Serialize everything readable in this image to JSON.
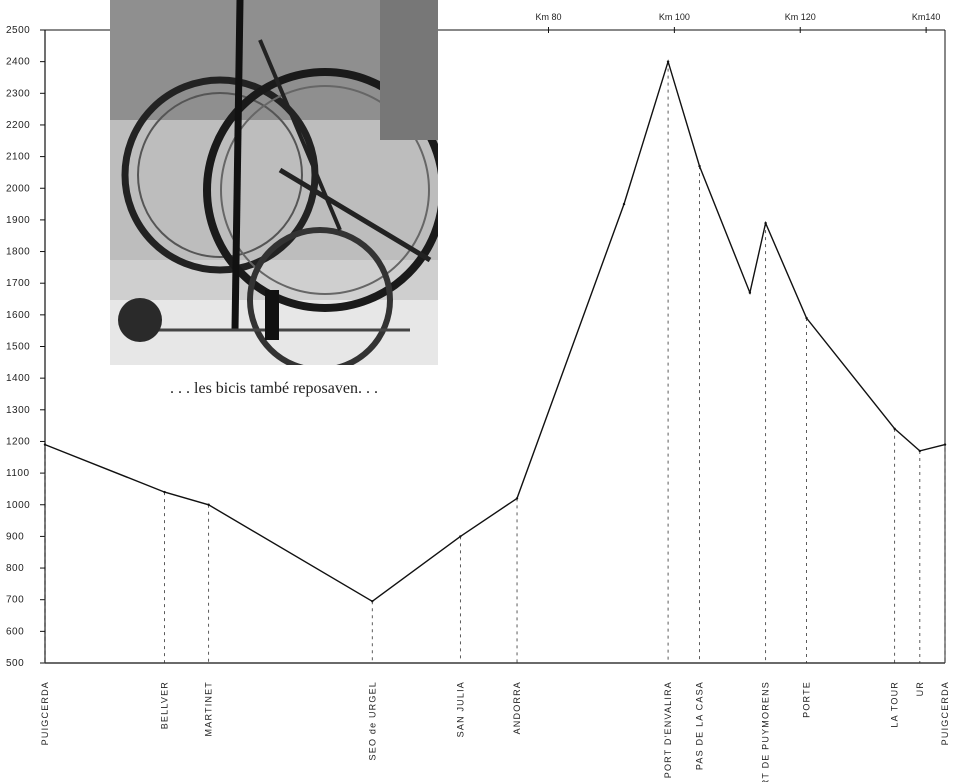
{
  "caption": ". . . les bicis també reposaven. . .",
  "photo": {
    "description_icon": "bicycles-photo"
  },
  "chart_data": {
    "type": "line",
    "y_unit_ticks": [
      2500,
      2400,
      2300,
      2200,
      2100,
      2000,
      1900,
      1800,
      1700,
      1600,
      1500,
      1400,
      1300,
      1200,
      1100,
      1000,
      900,
      800,
      700,
      600,
      500
    ],
    "ylim": [
      500,
      2500
    ],
    "xlim": [
      0,
      140
    ],
    "km_ticks": [
      {
        "km": 80,
        "label": "Km 80"
      },
      {
        "km": 100,
        "label": "Km 100"
      },
      {
        "km": 120,
        "label": "Km 120"
      },
      {
        "km": 140,
        "label": "Km140"
      }
    ],
    "points": [
      {
        "km": 0,
        "alt": 1190,
        "label": "PUIGCERDA"
      },
      {
        "km": 19,
        "alt": 1040,
        "label": "BELLVER"
      },
      {
        "km": 26,
        "alt": 1000,
        "label": "MARTINET"
      },
      {
        "km": 52,
        "alt": 695,
        "label": "SEO de URGEL"
      },
      {
        "km": 66,
        "alt": 900,
        "label": "SAN JULIA"
      },
      {
        "km": 75,
        "alt": 1020,
        "label": "ANDORRA"
      },
      {
        "km": 92,
        "alt": 1950,
        "label": ""
      },
      {
        "km": 99,
        "alt": 2400,
        "label": "PORT D'ENVALIRA"
      },
      {
        "km": 104,
        "alt": 2070,
        "label": "PAS DE LA CASA"
      },
      {
        "km": 112,
        "alt": 1670,
        "label": ""
      },
      {
        "km": 114.5,
        "alt": 1890,
        "label": "PORT DE PUYMORENS"
      },
      {
        "km": 121,
        "alt": 1590,
        "label": "PORTE"
      },
      {
        "km": 135,
        "alt": 1240,
        "label": "LA TOUR"
      },
      {
        "km": 139,
        "alt": 1170,
        "label": "UR"
      },
      {
        "km": 143,
        "alt": 1190,
        "label": "PUIGCERDA"
      }
    ]
  }
}
